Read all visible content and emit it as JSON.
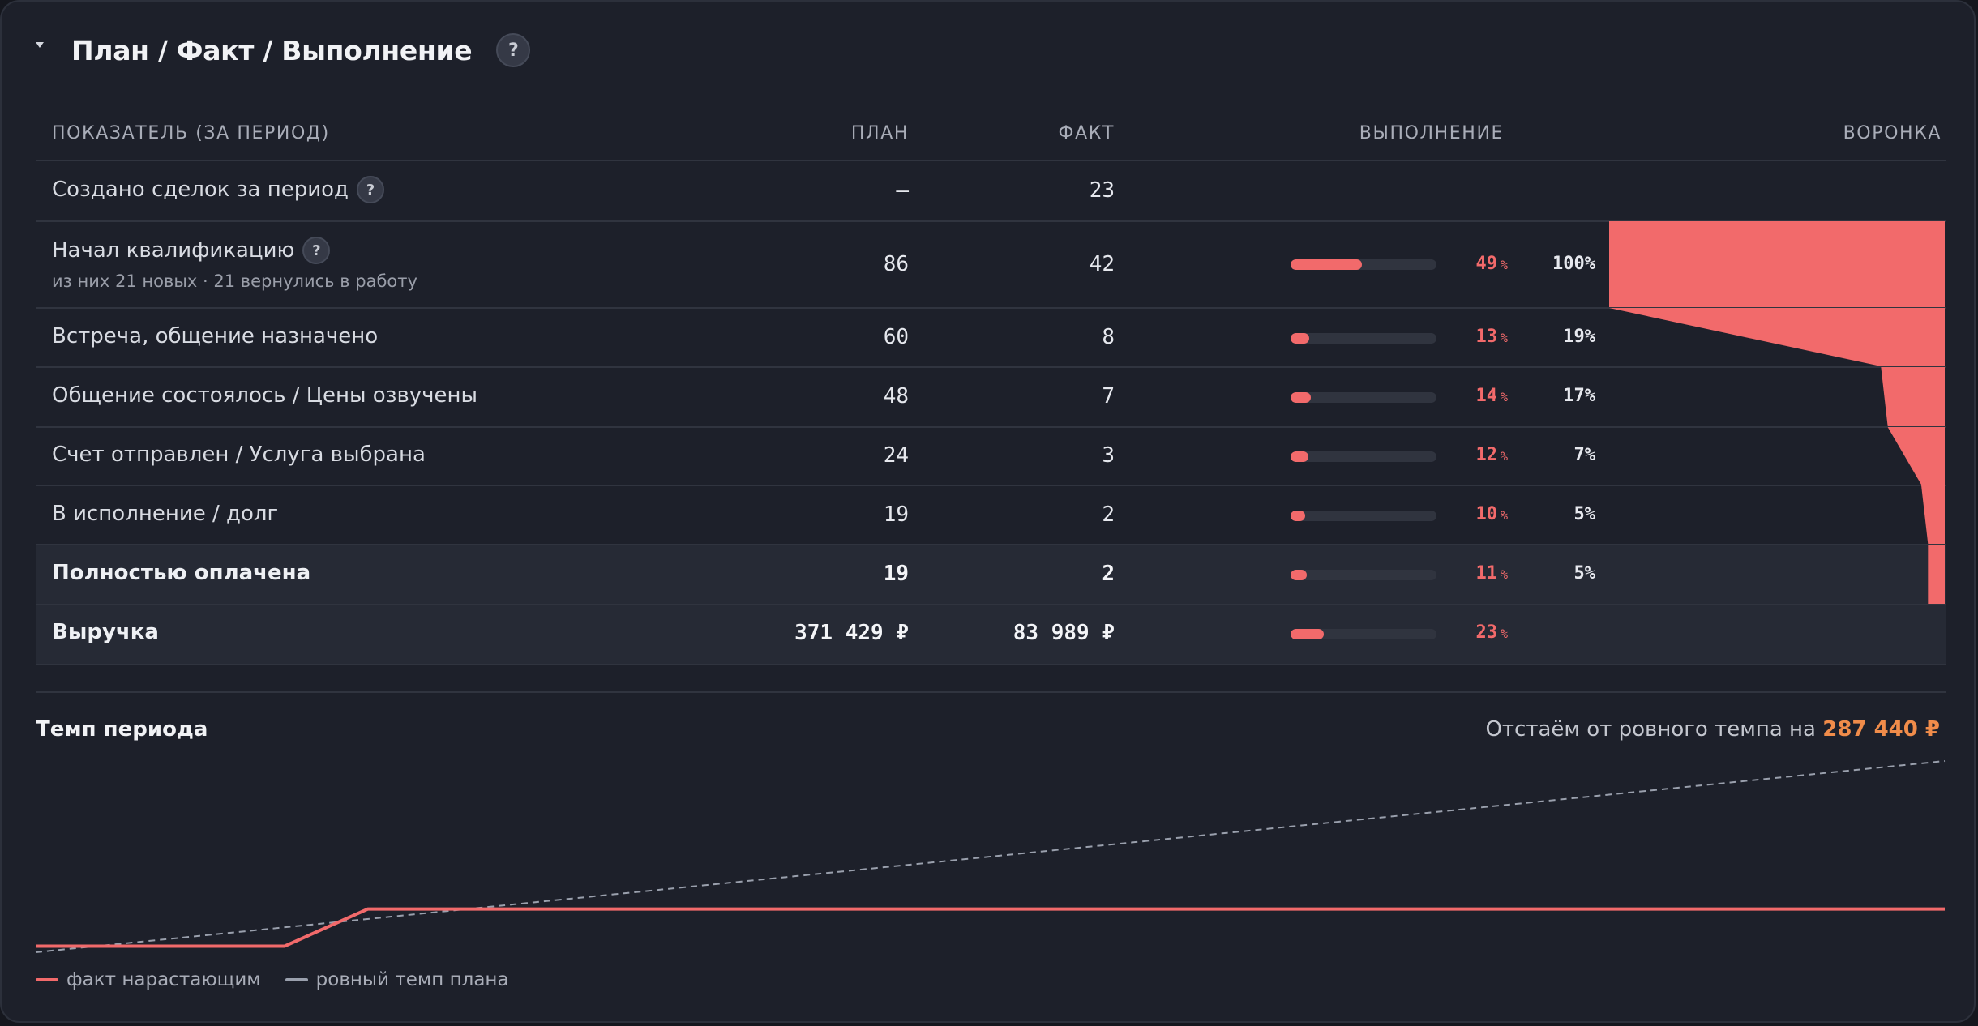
{
  "panel": {
    "title": "План / Факт / Выполнение",
    "help": "?"
  },
  "table": {
    "headers": {
      "metric": "ПОКАЗАТЕЛЬ (ЗА ПЕРИОД)",
      "plan": "ПЛАН",
      "fact": "ФАКТ",
      "completion": "ВЫПОЛНЕНИЕ",
      "funnel": "ВОРОНКА"
    },
    "rows": [
      {
        "label": "Создано сделок за период",
        "plan": "—",
        "fact": "23"
      },
      {
        "label": "Начал квалификацию",
        "sub": "из них 21 новых · 21 вернулись в работу",
        "plan": "86",
        "fact": "42",
        "pct": "49",
        "pct_value": 49,
        "conv": "100%",
        "funnel_share": 1.0
      },
      {
        "label": "Встреча, общение назначено",
        "plan": "60",
        "fact": "8",
        "pct": "13",
        "pct_value": 13,
        "conv": "19%",
        "funnel_share": 0.19
      },
      {
        "label": "Общение состоялось / Цены озвучены",
        "plan": "48",
        "fact": "7",
        "pct": "14",
        "pct_value": 14,
        "conv": "17%",
        "funnel_share": 0.17
      },
      {
        "label": "Счет отправлен / Услуга выбрана",
        "plan": "24",
        "fact": "3",
        "pct": "12",
        "pct_value": 12,
        "conv": "7%",
        "funnel_share": 0.07
      },
      {
        "label": "В исполнение / долг",
        "plan": "19",
        "fact": "2",
        "pct": "10",
        "pct_value": 10,
        "conv": "5%",
        "funnel_share": 0.05
      },
      {
        "label": "Полностью оплачена",
        "plan": "19",
        "fact": "2",
        "pct": "11",
        "pct_value": 11,
        "conv": "5%",
        "funnel_share": 0.05
      },
      {
        "label": "Выручка",
        "plan": "371 429 ₽",
        "fact": "83 989 ₽",
        "pct": "23",
        "pct_value": 23
      }
    ],
    "pct_unit": "%"
  },
  "pace": {
    "title": "Темп периода",
    "lag_text": "Отстаём от ровного темпа на",
    "lag_value": "287 440 ₽",
    "legend_fact": "факт нарастающим",
    "legend_plan": "ровный темп плана",
    "colors": {
      "fact": "#f26a6b",
      "plan": "#9aa0ad",
      "accent": "#f08c4a"
    }
  },
  "chart_data": {
    "type": "line",
    "series": [
      {
        "name": "факт нарастающим",
        "values": [
          0.032,
          0.032,
          0.032,
          0.032,
          0.226,
          0.226,
          0.226,
          0.226,
          0.226,
          0.226,
          0.226,
          0.226,
          0.226,
          0.226,
          0.226,
          0.226,
          0.226,
          0.226,
          0.226,
          0.226,
          0.226,
          0.226,
          0.226,
          0.226
        ]
      },
      {
        "name": "ровный темп плана",
        "values": [
          0.0,
          1.0
        ]
      }
    ]
  }
}
